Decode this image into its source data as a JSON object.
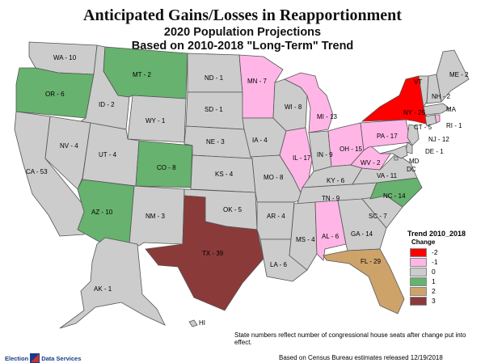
{
  "title": "Anticipated Gains/Losses in Reapportionment",
  "subtitle1": "2020 Population Projections",
  "subtitle2": "Based on 2010-2018 \"Long-Term\" Trend",
  "colors": {
    "-2": "#ff0000",
    "-1": "#ffb6e6",
    "0": "#cccccc",
    "1": "#66b26e",
    "2": "#cda36a",
    "3": "#8b3a3a"
  },
  "legend": {
    "title": "Trend 2010_2018",
    "subtitle": "Change",
    "items": [
      {
        "value": -2,
        "label": "-2"
      },
      {
        "value": -1,
        "label": "-1"
      },
      {
        "value": 0,
        "label": "0"
      },
      {
        "value": 1,
        "label": "1"
      },
      {
        "value": 2,
        "label": "2"
      },
      {
        "value": 3,
        "label": "3"
      }
    ]
  },
  "note": "State numbers reflect number of congressional house seats after change put into effect.",
  "footer_left": {
    "part1": "Election",
    "part2": "Data Services"
  },
  "footer_right": "Based on Census Bureau estimates released 12/19/2018",
  "states": [
    {
      "abbr": "WA",
      "label": "WA - 10",
      "change": 0
    },
    {
      "abbr": "OR",
      "label": "OR - 6",
      "change": 1
    },
    {
      "abbr": "CA",
      "label": "CA - 53",
      "change": 0
    },
    {
      "abbr": "ID",
      "label": "ID - 2",
      "change": 0
    },
    {
      "abbr": "NV",
      "label": "NV - 4",
      "change": 0
    },
    {
      "abbr": "MT",
      "label": "MT - 2",
      "change": 1
    },
    {
      "abbr": "WY",
      "label": "WY - 1",
      "change": 0
    },
    {
      "abbr": "UT",
      "label": "UT - 4",
      "change": 0
    },
    {
      "abbr": "AZ",
      "label": "AZ - 10",
      "change": 1
    },
    {
      "abbr": "CO",
      "label": "CO - 8",
      "change": 1
    },
    {
      "abbr": "NM",
      "label": "NM - 3",
      "change": 0
    },
    {
      "abbr": "ND",
      "label": "ND - 1",
      "change": 0
    },
    {
      "abbr": "SD",
      "label": "SD - 1",
      "change": 0
    },
    {
      "abbr": "NE",
      "label": "NE - 3",
      "change": 0
    },
    {
      "abbr": "KS",
      "label": "KS - 4",
      "change": 0
    },
    {
      "abbr": "OK",
      "label": "OK - 5",
      "change": 0
    },
    {
      "abbr": "TX",
      "label": "TX - 39",
      "change": 3
    },
    {
      "abbr": "MN",
      "label": "MN - 7",
      "change": -1
    },
    {
      "abbr": "IA",
      "label": "IA - 4",
      "change": 0
    },
    {
      "abbr": "MO",
      "label": "MO - 8",
      "change": 0
    },
    {
      "abbr": "AR",
      "label": "AR - 4",
      "change": 0
    },
    {
      "abbr": "LA",
      "label": "LA - 6",
      "change": 0
    },
    {
      "abbr": "WI",
      "label": "WI - 8",
      "change": 0
    },
    {
      "abbr": "IL",
      "label": "IL - 17",
      "change": -1
    },
    {
      "abbr": "MI",
      "label": "MI - 13",
      "change": -1
    },
    {
      "abbr": "IN",
      "label": "IN - 9",
      "change": 0
    },
    {
      "abbr": "OH",
      "label": "OH - 15",
      "change": -1
    },
    {
      "abbr": "KY",
      "label": "KY - 6",
      "change": 0
    },
    {
      "abbr": "TN",
      "label": "TN - 9",
      "change": 0
    },
    {
      "abbr": "MS",
      "label": "MS - 4",
      "change": 0
    },
    {
      "abbr": "AL",
      "label": "AL - 6",
      "change": -1
    },
    {
      "abbr": "GA",
      "label": "GA - 14",
      "change": 0
    },
    {
      "abbr": "FL",
      "label": "FL - 29",
      "change": 2
    },
    {
      "abbr": "SC",
      "label": "SC - 7",
      "change": 0
    },
    {
      "abbr": "NC",
      "label": "NC - 14",
      "change": 1
    },
    {
      "abbr": "VA",
      "label": "VA - 11",
      "change": 0
    },
    {
      "abbr": "WV",
      "label": "WV - 2",
      "change": -1
    },
    {
      "abbr": "PA",
      "label": "PA - 17",
      "change": -1
    },
    {
      "abbr": "NY",
      "label": "NY - 25",
      "change": -2
    },
    {
      "abbr": "NJ",
      "label": "NJ - 12",
      "change": 0
    },
    {
      "abbr": "DE",
      "label": "DE - 1",
      "change": 0
    },
    {
      "abbr": "MD",
      "label": "MD",
      "change": 0
    },
    {
      "abbr": "DC",
      "label": "DC",
      "change": 0
    },
    {
      "abbr": "CT",
      "label": "CT - 5",
      "change": 0
    },
    {
      "abbr": "RI",
      "label": "RI - 1",
      "change": -1
    },
    {
      "abbr": "MA",
      "label": "MA",
      "change": 0
    },
    {
      "abbr": "VT",
      "label": "VT",
      "change": 0
    },
    {
      "abbr": "NH",
      "label": "NH - 2",
      "change": 0
    },
    {
      "abbr": "ME",
      "label": "ME - 2",
      "change": 0
    },
    {
      "abbr": "AK",
      "label": "AK - 1",
      "change": 0
    },
    {
      "abbr": "HI",
      "label": "HI",
      "change": 0
    }
  ]
}
